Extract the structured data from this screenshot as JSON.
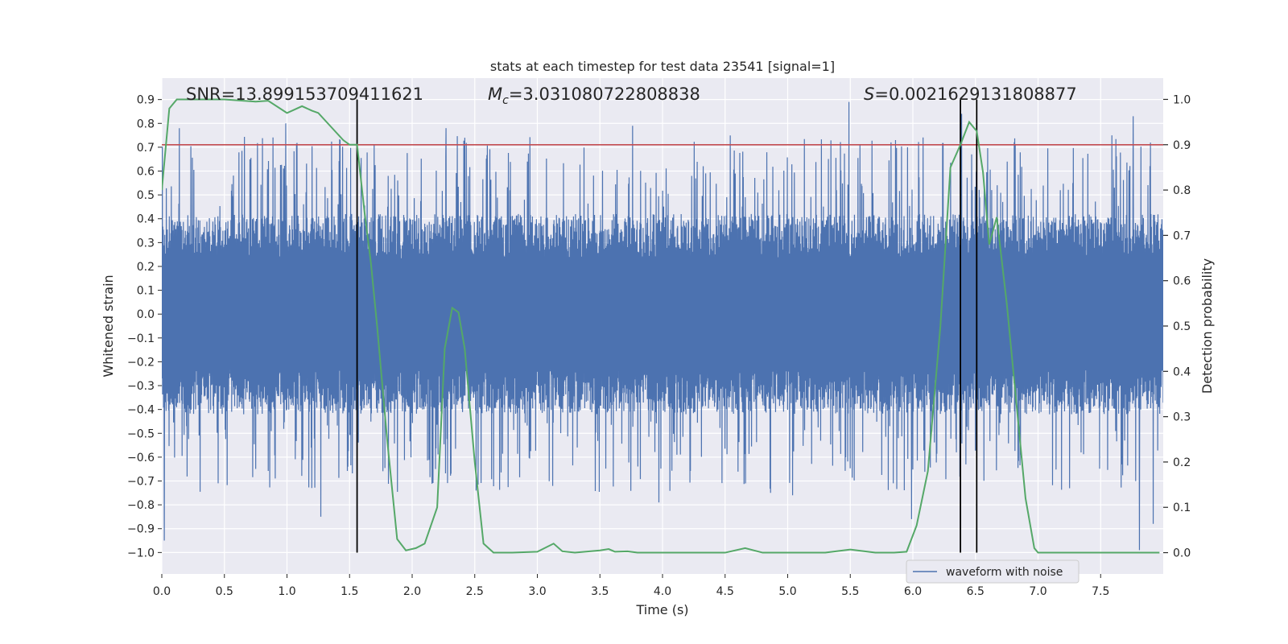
{
  "chart_data": {
    "type": "line",
    "title": "stats at each timestep for test data 23541 [signal=1]",
    "xlabel": "Time (s)",
    "ylabel": "Whitened strain",
    "y2label": "Detection probability",
    "xlim": [
      0,
      8
    ],
    "ylim": [
      -1.09,
      0.99
    ],
    "y2lim": [
      -0.047,
      1.047
    ],
    "x_ticks": [
      0.0,
      0.5,
      1.0,
      1.5,
      2.0,
      2.5,
      3.0,
      3.5,
      4.0,
      4.5,
      5.0,
      5.5,
      6.0,
      6.5,
      7.0,
      7.5
    ],
    "x_tick_labels": [
      "0.0",
      "0.5",
      "1.0",
      "1.5",
      "2.0",
      "2.5",
      "3.0",
      "3.5",
      "4.0",
      "4.5",
      "5.0",
      "5.5",
      "6.0",
      "6.5",
      "7.0",
      "7.5"
    ],
    "y_ticks": [
      0.9,
      0.8,
      0.7,
      0.6,
      0.5,
      0.4,
      0.3,
      0.2,
      0.1,
      0.0,
      -0.1,
      -0.2,
      -0.3,
      -0.4,
      -0.5,
      -0.6,
      -0.7,
      -0.8,
      -0.9,
      -1.0
    ],
    "y_tick_labels": [
      "0.9",
      "0.8",
      "0.7",
      "0.6",
      "0.5",
      "0.4",
      "0.3",
      "0.2",
      "0.1",
      "0.0",
      "−0.1",
      "−0.2",
      "−0.3",
      "−0.4",
      "−0.5",
      "−0.6",
      "−0.7",
      "−0.8",
      "−0.9",
      "−1.0"
    ],
    "y2_ticks": [
      1.0,
      0.9,
      0.8,
      0.7,
      0.6,
      0.5,
      0.4,
      0.3,
      0.2,
      0.1,
      0.0
    ],
    "y2_tick_labels": [
      "1.0",
      "0.9",
      "0.8",
      "0.7",
      "0.6",
      "0.5",
      "0.4",
      "0.3",
      "0.2",
      "0.1",
      "0.0"
    ],
    "annotations": {
      "snr": "SNR=13.899153709411621",
      "mc_prefix": "M",
      "mc_sub": "c",
      "mc_value": "=3.031080722808838",
      "s_prefix": "S",
      "s_value": "=0.0021629131808877"
    },
    "threshold": {
      "value": 0.9,
      "axis": "y2",
      "color": "#c44e52"
    },
    "vertical_lines": [
      {
        "x": 1.56,
        "color": "#000000"
      },
      {
        "x": 6.38,
        "color": "#000000"
      },
      {
        "x": 6.51,
        "color": "#000000"
      }
    ],
    "waveform": {
      "name": "waveform with noise",
      "color": "#4c72b0",
      "description_note": "dense noisy strain series, mostly within ±0.45 with spikes to ±0.9",
      "core_amplitude": 0.42,
      "peaks": [
        {
          "x": 0.02,
          "y": -0.95
        },
        {
          "x": 0.14,
          "y": 0.78
        },
        {
          "x": 0.99,
          "y": 0.8
        },
        {
          "x": 1.27,
          "y": -0.85
        },
        {
          "x": 2.27,
          "y": 0.78
        },
        {
          "x": 2.51,
          "y": -0.74
        },
        {
          "x": 3.76,
          "y": 0.79
        },
        {
          "x": 3.97,
          "y": -0.79
        },
        {
          "x": 5.04,
          "y": -0.76
        },
        {
          "x": 5.49,
          "y": 0.89
        },
        {
          "x": 5.99,
          "y": -0.86
        },
        {
          "x": 6.39,
          "y": 0.84
        },
        {
          "x": 7.76,
          "y": 0.83
        },
        {
          "x": 7.81,
          "y": -0.99
        },
        {
          "x": 7.92,
          "y": -0.88
        }
      ]
    },
    "series": [
      {
        "name": "detection probability",
        "axis": "y2",
        "color": "#55a868",
        "x": [
          0.0,
          0.06,
          0.12,
          0.25,
          0.5,
          0.75,
          0.85,
          1.0,
          1.12,
          1.2,
          1.25,
          1.35,
          1.45,
          1.5,
          1.56,
          1.62,
          1.67,
          1.72,
          1.8,
          1.88,
          1.95,
          2.03,
          2.1,
          2.2,
          2.26,
          2.32,
          2.37,
          2.42,
          2.5,
          2.57,
          2.65,
          2.72,
          2.8,
          3.0,
          3.13,
          3.2,
          3.3,
          3.5,
          3.57,
          3.62,
          3.72,
          3.8,
          3.9,
          4.2,
          4.5,
          4.66,
          4.8,
          5.0,
          5.3,
          5.5,
          5.7,
          5.85,
          5.95,
          6.03,
          6.12,
          6.22,
          6.3,
          6.38,
          6.45,
          6.51,
          6.56,
          6.61,
          6.67,
          6.75,
          6.82,
          6.9,
          6.97,
          7.0,
          7.3,
          7.97
        ],
        "y": [
          0.8,
          0.98,
          1.0,
          1.0,
          1.0,
          0.995,
          0.997,
          0.97,
          0.985,
          0.975,
          0.97,
          0.94,
          0.91,
          0.9,
          0.9,
          0.75,
          0.64,
          0.5,
          0.25,
          0.03,
          0.005,
          0.01,
          0.02,
          0.1,
          0.45,
          0.54,
          0.53,
          0.45,
          0.2,
          0.02,
          0.0,
          0.0,
          0.0,
          0.002,
          0.02,
          0.003,
          0.0,
          0.005,
          0.008,
          0.002,
          0.003,
          0.0,
          0.0,
          0.0,
          0.0,
          0.01,
          0.0,
          0.0,
          0.0,
          0.007,
          0.0,
          0.0,
          0.002,
          0.06,
          0.18,
          0.5,
          0.85,
          0.9,
          0.95,
          0.93,
          0.84,
          0.68,
          0.74,
          0.55,
          0.35,
          0.12,
          0.01,
          0.0,
          0.0,
          0.0
        ]
      }
    ],
    "legend": {
      "label": "waveform with noise",
      "position": "lower-right"
    }
  }
}
